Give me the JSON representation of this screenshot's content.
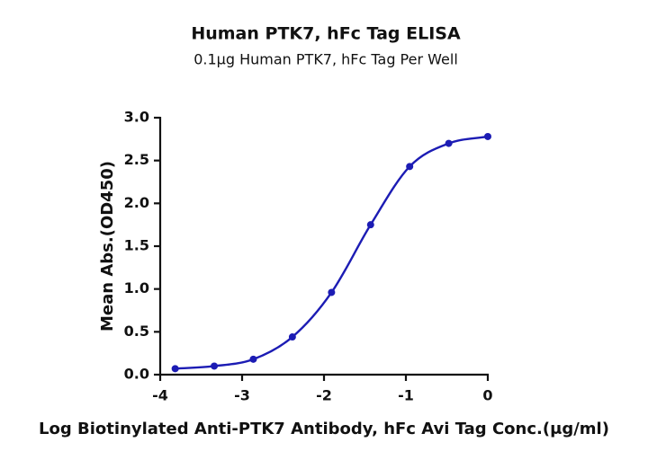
{
  "chart_data": {
    "type": "scatter",
    "title": "Human PTK7, hFc Tag ELISA",
    "subtitle": "0.1μg Human PTK7, hFc Tag Per Well",
    "x_label": "Log Biotinylated Anti-PTK7 Antibody, hFc Avi Tag Conc.(μg/ml)",
    "y_label": "Mean Abs.(OD450)",
    "x": [
      -3.817,
      -3.34,
      -2.863,
      -2.386,
      -1.908,
      -1.431,
      -0.954,
      -0.477,
      0
    ],
    "values": [
      0.07,
      0.1,
      0.18,
      0.44,
      0.96,
      1.75,
      2.43,
      2.7,
      2.78
    ],
    "color": "#1c1cb4",
    "xlim": [
      -4,
      0
    ],
    "xticks": [
      -4,
      -3,
      -2,
      -1,
      0
    ],
    "ylim": [
      0,
      3
    ],
    "yticks": [
      {
        "value": 0,
        "label": "0.0"
      },
      0.5,
      {
        "value": 1,
        "label": "1.0"
      },
      1.5,
      {
        "value": 2,
        "label": "2.0"
      },
      2.5,
      {
        "value": 3,
        "label": "3.0"
      }
    ]
  }
}
